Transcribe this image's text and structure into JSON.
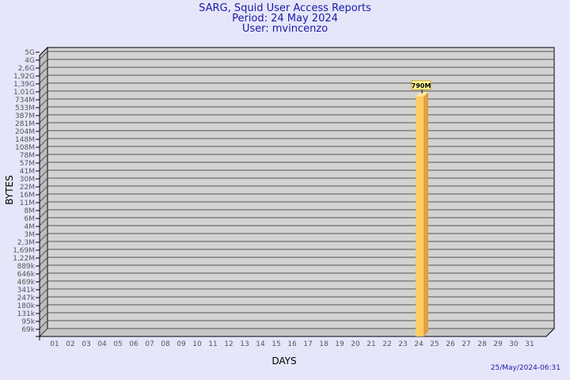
{
  "header": {
    "title": "SARG, Squid User Access Reports",
    "period": "Period: 24 May 2024",
    "user": "User: mvincenzo"
  },
  "footer": {
    "timestamp": "25/May/2024-06:31"
  },
  "chart_data": {
    "type": "bar",
    "xlabel": "DAYS",
    "ylabel": "BYTES",
    "y_scale": "log",
    "grid": true,
    "y_tick_labels": [
      "5G",
      "4G",
      "2,6G",
      "1,92G",
      "1,39G",
      "1,01G",
      "734M",
      "533M",
      "387M",
      "281M",
      "204M",
      "148M",
      "108M",
      "78M",
      "57M",
      "41M",
      "30M",
      "22M",
      "16M",
      "11M",
      "8M",
      "6M",
      "4M",
      "3M",
      "2,3M",
      "1,69M",
      "1,22M",
      "889k",
      "646k",
      "469k",
      "341k",
      "247k",
      "180k",
      "131k",
      "95k",
      "69k"
    ],
    "categories": [
      "01",
      "02",
      "03",
      "04",
      "05",
      "06",
      "07",
      "08",
      "09",
      "10",
      "11",
      "12",
      "13",
      "14",
      "15",
      "16",
      "17",
      "18",
      "19",
      "20",
      "21",
      "22",
      "23",
      "24",
      "25",
      "26",
      "27",
      "28",
      "29",
      "30",
      "31"
    ],
    "bars": [
      {
        "day": "24",
        "value_label": "790M"
      }
    ],
    "colors": {
      "bar_front": "#ffcc66",
      "bar_side": "#e0a040",
      "wall": "#d3d3d3",
      "background": "#e6e6fa"
    }
  }
}
